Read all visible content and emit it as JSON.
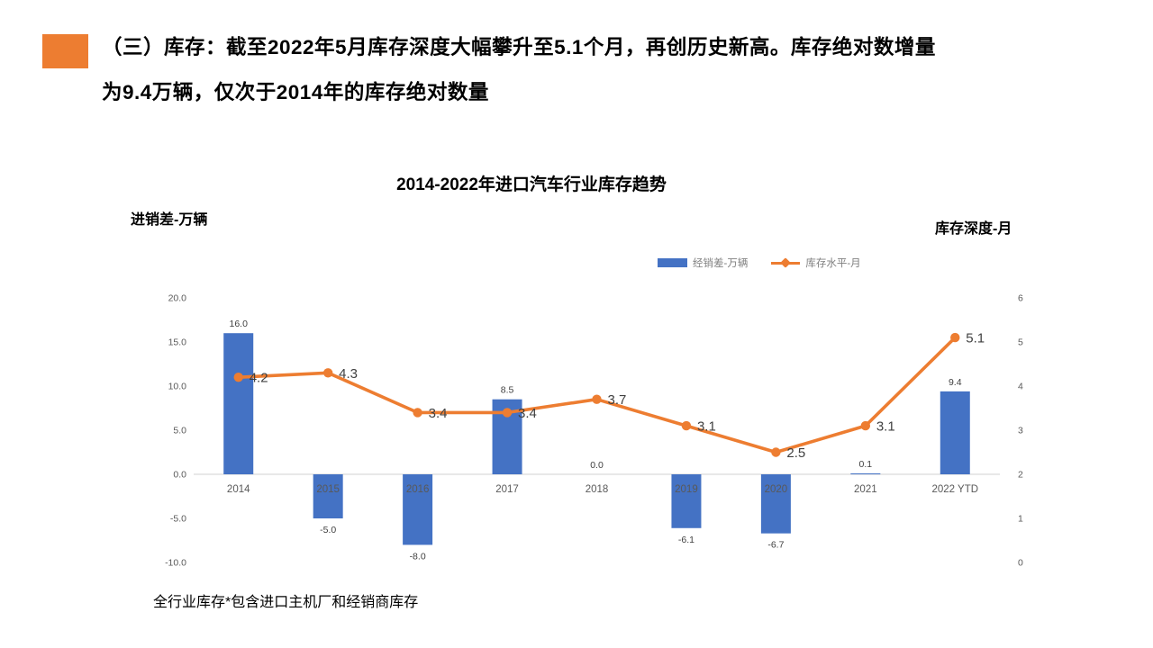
{
  "header": {
    "line1": "（三）库存：截至2022年5月库存深度大幅攀升至5.1个月，再创历史新高。库存绝对数增量",
    "line2": "为9.4万辆，仅次于2014年的库存绝对数量",
    "accent_color": "#ED7D31"
  },
  "chart": {
    "title": "2014-2022年进口汽车行业库存趋势",
    "left_axis_title": "进销差-万辆",
    "right_axis_title": "库存深度-月",
    "footnote": "全行业库存*包含进口主机厂和经销商库存"
  },
  "chart_data": {
    "type": "bar",
    "title": "2014-2022年进口汽车行业库存趋势",
    "categories": [
      "2014",
      "2015",
      "2016",
      "2017",
      "2018",
      "2019",
      "2020",
      "2021",
      "2022 YTD"
    ],
    "series": [
      {
        "name": "经销差-万辆",
        "type": "bar",
        "axis": "left",
        "color": "#4472C4",
        "values": [
          16.0,
          -5.0,
          -8.0,
          8.5,
          0.0,
          -6.1,
          -6.7,
          0.1,
          9.4
        ]
      },
      {
        "name": "库存水平-月",
        "type": "line",
        "axis": "right",
        "color": "#ED7D31",
        "values": [
          4.2,
          4.3,
          3.4,
          3.4,
          3.7,
          3.1,
          2.5,
          3.1,
          5.1
        ]
      }
    ],
    "left_ylabel": "进销差-万辆",
    "right_ylabel": "库存深度-月",
    "left_ylim": [
      -10,
      20
    ],
    "right_ylim": [
      0,
      6
    ],
    "left_ticks": [
      "20.0",
      "15.0",
      "10.0",
      "5.0",
      "0.0",
      "-5.0",
      "-10.0"
    ],
    "right_ticks": [
      "6",
      "5",
      "4",
      "3",
      "2",
      "1",
      "0"
    ],
    "grid": false,
    "legend_position": "top-center",
    "axis_line_color": "#D9D9D9",
    "tick_label_color": "#595959",
    "data_label_color": "#404040"
  }
}
